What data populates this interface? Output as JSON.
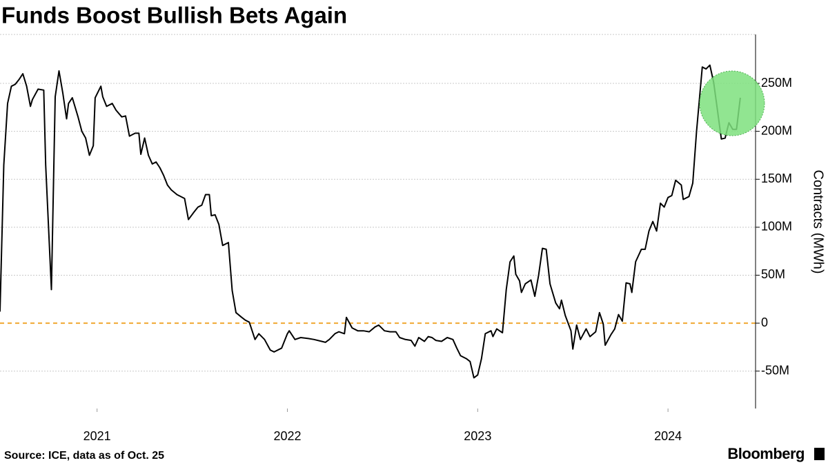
{
  "chart_data": {
    "type": "line",
    "title": "Funds Boost Bullish Bets Again",
    "y_label": "Contracts (MWh)",
    "source": "Source: ICE, data as of Oct. 25",
    "brand": "Bloomberg",
    "grid": true,
    "zero_line_color": "#f0a830",
    "xlim": [
      2020.49,
      2024.46
    ],
    "xticks": [
      2021,
      2022,
      2023,
      2024
    ],
    "ylim": [
      -89000000,
      301000000
    ],
    "yticks": [
      {
        "value": -50000000,
        "label": "-50M"
      },
      0,
      {
        "value": 50000000,
        "label": "50M"
      },
      {
        "value": 100000000,
        "label": "100M"
      },
      {
        "value": 150000000,
        "label": "150M"
      },
      {
        "value": 200000000,
        "label": "200M"
      },
      {
        "value": 250000000,
        "label": "250M"
      }
    ],
    "x": [
      2020.49,
      2020.51,
      2020.53,
      2020.55,
      2020.57,
      2020.59,
      2020.61,
      2020.63,
      2020.65,
      2020.66,
      2020.69,
      2020.72,
      2020.73,
      2020.76,
      2020.78,
      2020.8,
      2020.82,
      2020.84,
      2020.85,
      2020.87,
      2020.9,
      2020.92,
      2020.94,
      2020.96,
      2020.98,
      2020.99,
      2021.02,
      2021.03,
      2021.05,
      2021.08,
      2021.1,
      2021.13,
      2021.15,
      2021.17,
      2021.2,
      2021.22,
      2021.23,
      2021.25,
      2021.27,
      2021.29,
      2021.31,
      2021.33,
      2021.35,
      2021.37,
      2021.39,
      2021.42,
      2021.46,
      2021.48,
      2021.51,
      2021.53,
      2021.55,
      2021.57,
      2021.59,
      2021.6,
      2021.62,
      2021.64,
      2021.66,
      2021.69,
      2021.71,
      2021.73,
      2021.76,
      2021.78,
      2021.8,
      2021.83,
      2021.85,
      2021.88,
      2021.91,
      2021.93,
      2021.97,
      2022.0,
      2022.01,
      2022.04,
      2022.07,
      2022.11,
      2022.14,
      2022.18,
      2022.2,
      2022.22,
      2022.25,
      2022.27,
      2022.3,
      2022.31,
      2022.34,
      2022.37,
      2022.4,
      2022.43,
      2022.46,
      2022.48,
      2022.51,
      2022.54,
      2022.57,
      2022.59,
      2022.62,
      2022.65,
      2022.67,
      2022.69,
      2022.72,
      2022.74,
      2022.76,
      2022.78,
      2022.81,
      2022.84,
      2022.87,
      2022.89,
      2022.91,
      2022.94,
      2022.96,
      2022.98,
      2023.0,
      2023.02,
      2023.04,
      2023.07,
      2023.08,
      2023.1,
      2023.13,
      2023.15,
      2023.17,
      2023.19,
      2023.2,
      2023.22,
      2023.23,
      2023.25,
      2023.28,
      2023.3,
      2023.32,
      2023.34,
      2023.36,
      2023.38,
      2023.41,
      2023.43,
      2023.44,
      2023.46,
      2023.49,
      2023.5,
      2023.52,
      2023.54,
      2023.57,
      2023.59,
      2023.62,
      2023.64,
      2023.66,
      2023.67,
      2023.7,
      2023.72,
      2023.74,
      2023.76,
      2023.78,
      2023.8,
      2023.81,
      2023.83,
      2023.86,
      2023.88,
      2023.9,
      2023.92,
      2023.94,
      2023.96,
      2023.98,
      2024.0,
      2024.02,
      2024.04,
      2024.07,
      2024.08,
      2024.11,
      2024.13,
      2024.15,
      2024.18,
      2024.2,
      2024.22,
      2024.24,
      2024.26,
      2024.28,
      2024.3,
      2024.32,
      2024.34,
      2024.36,
      2024.38
    ],
    "series": [
      {
        "name": "Contracts",
        "color": "#000000",
        "values": [
          12000000,
          165000000,
          229000000,
          247000000,
          249000000,
          254000000,
          260000000,
          247000000,
          226000000,
          233000000,
          244000000,
          243000000,
          165000000,
          35000000,
          236000000,
          263000000,
          240000000,
          213000000,
          229000000,
          235000000,
          215000000,
          200000000,
          193000000,
          175000000,
          185000000,
          235000000,
          247000000,
          236000000,
          226000000,
          229000000,
          222000000,
          215000000,
          216000000,
          195000000,
          198000000,
          198000000,
          176000000,
          193000000,
          175000000,
          166000000,
          168000000,
          162000000,
          154000000,
          144000000,
          139000000,
          134000000,
          130000000,
          108000000,
          116000000,
          121000000,
          123000000,
          134000000,
          134000000,
          112000000,
          113000000,
          103000000,
          81000000,
          84000000,
          34000000,
          11000000,
          6000000,
          3000000,
          1000000,
          -17000000,
          -11000000,
          -17000000,
          -28000000,
          -30000000,
          -26000000,
          -11000000,
          -8000000,
          -17000000,
          -15000000,
          -16000000,
          -17000000,
          -19000000,
          -20000000,
          -17000000,
          -11000000,
          -9000000,
          -11000000,
          6000000,
          -5000000,
          -8000000,
          -8000000,
          -9000000,
          -4000000,
          -2000000,
          -8000000,
          -9000000,
          -9000000,
          -15000000,
          -17000000,
          -18000000,
          -24000000,
          -15000000,
          -19000000,
          -14000000,
          -15000000,
          -18000000,
          -19000000,
          -15000000,
          -17000000,
          -26000000,
          -34000000,
          -37000000,
          -40000000,
          -57000000,
          -54000000,
          -37000000,
          -11000000,
          -8000000,
          -14000000,
          -6000000,
          -10000000,
          35000000,
          64000000,
          70000000,
          51000000,
          44000000,
          32000000,
          41000000,
          45000000,
          28000000,
          50000000,
          78000000,
          77000000,
          41000000,
          21000000,
          15000000,
          24000000,
          8000000,
          -8000000,
          -27000000,
          -2000000,
          -17000000,
          -6000000,
          -14000000,
          -9000000,
          11000000,
          -1000000,
          -23000000,
          -12000000,
          -6000000,
          9000000,
          2000000,
          42000000,
          41000000,
          32000000,
          64000000,
          77000000,
          77000000,
          96000000,
          106000000,
          96000000,
          125000000,
          121000000,
          131000000,
          133000000,
          149000000,
          144000000,
          129000000,
          132000000,
          146000000,
          200000000,
          267000000,
          265000000,
          269000000,
          251000000,
          222000000,
          192000000,
          193000000,
          209000000,
          202000000,
          202000000,
          235000000
        ]
      }
    ]
  }
}
